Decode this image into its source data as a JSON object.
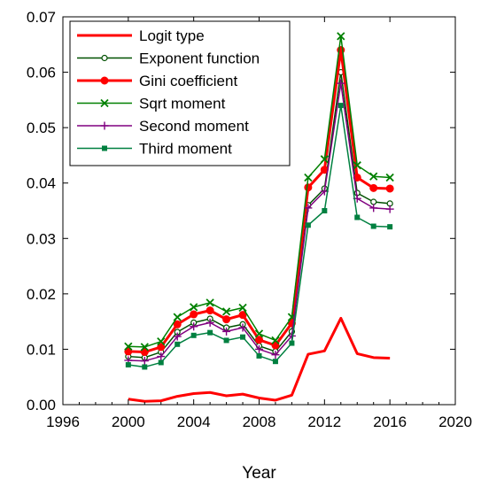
{
  "chart_data": {
    "type": "line",
    "title": "",
    "xlabel": "Year",
    "ylabel": "",
    "xlim": [
      1996,
      2020
    ],
    "ylim": [
      0,
      0.07
    ],
    "xticks": [
      "1996",
      "2000",
      "2004",
      "2008",
      "2012",
      "2016",
      "2020"
    ],
    "yticks": [
      "0.00",
      "0.01",
      "0.02",
      "0.03",
      "0.04",
      "0.05",
      "0.06",
      "0.07"
    ],
    "grid": false,
    "legend_position": "top-left",
    "x": [
      2000,
      2001,
      2002,
      2003,
      2004,
      2005,
      2006,
      2007,
      2008,
      2009,
      2010,
      2011,
      2012,
      2013,
      2014,
      2015,
      2016
    ],
    "series": [
      {
        "name": "Logit type",
        "color": "#ff0000",
        "marker": "none",
        "values": [
          0.001,
          0.0006,
          0.0007,
          0.0015,
          0.002,
          0.0022,
          0.0016,
          0.0019,
          0.0012,
          0.0008,
          0.0017,
          0.0091,
          0.0097,
          0.0156,
          0.0092,
          0.0085,
          0.0084
        ]
      },
      {
        "name": "Exponent function",
        "color": "#005000",
        "marker": "open-circle",
        "values": [
          0.0087,
          0.0085,
          0.0095,
          0.0131,
          0.0148,
          0.0155,
          0.0139,
          0.0145,
          0.0106,
          0.0096,
          0.0132,
          0.036,
          0.039,
          0.06,
          0.0382,
          0.0366,
          0.0363
        ]
      },
      {
        "name": "Gini coefficient",
        "color": "#ff0000",
        "marker": "filled-circle",
        "values": [
          0.0096,
          0.0095,
          0.0104,
          0.0145,
          0.0163,
          0.017,
          0.0154,
          0.0162,
          0.0117,
          0.0107,
          0.0147,
          0.0392,
          0.0424,
          0.064,
          0.041,
          0.0391,
          0.039
        ]
      },
      {
        "name": "Sqrt moment",
        "color": "#008000",
        "marker": "x",
        "values": [
          0.0105,
          0.0104,
          0.0114,
          0.0158,
          0.0176,
          0.0184,
          0.0168,
          0.0175,
          0.0128,
          0.0116,
          0.0158,
          0.041,
          0.0443,
          0.0665,
          0.0432,
          0.0412,
          0.041
        ]
      },
      {
        "name": "Second moment",
        "color": "#800080",
        "marker": "plus",
        "values": [
          0.008,
          0.0079,
          0.0087,
          0.0123,
          0.0141,
          0.0148,
          0.0132,
          0.0139,
          0.01,
          0.009,
          0.0124,
          0.0355,
          0.0385,
          0.058,
          0.0372,
          0.0355,
          0.0353
        ]
      },
      {
        "name": "Third moment",
        "color": "#008040",
        "marker": "filled-square",
        "values": [
          0.0072,
          0.0068,
          0.0076,
          0.0109,
          0.0125,
          0.013,
          0.0116,
          0.0122,
          0.0088,
          0.0078,
          0.0111,
          0.0324,
          0.035,
          0.054,
          0.0338,
          0.0322,
          0.0321
        ]
      }
    ]
  }
}
